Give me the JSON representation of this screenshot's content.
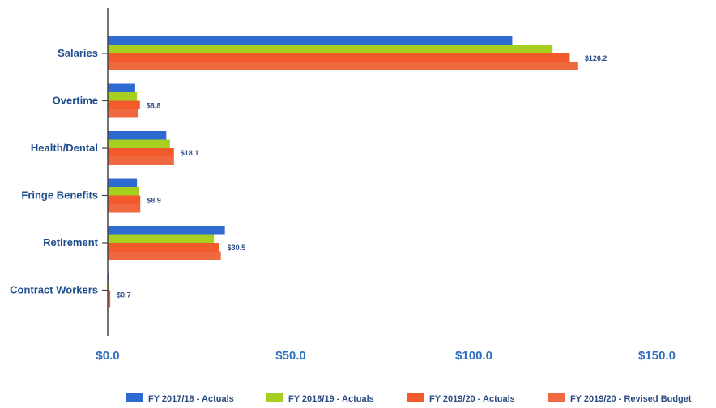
{
  "chart_data": {
    "type": "bar",
    "orientation": "horizontal",
    "categories": [
      "Salaries",
      "Overtime",
      "Health/Dental",
      "Fringe Benefits",
      "Retirement",
      "Contract Workers"
    ],
    "series": [
      {
        "name": "FY 2017/18 - Actuals",
        "color": "#2e6bd1",
        "values": [
          110.5,
          7.5,
          16.0,
          8.0,
          32.0,
          0.3
        ]
      },
      {
        "name": "FY 2018/19 - Actuals",
        "color": "#a6cf1f",
        "values": [
          121.5,
          8.0,
          17.0,
          8.5,
          29.0,
          0.2
        ]
      },
      {
        "name": "FY 2019/20 - Actuals",
        "color": "#f25a2c",
        "values": [
          126.2,
          8.8,
          18.1,
          8.9,
          30.5,
          0.7
        ]
      },
      {
        "name": "FY 2019/20 - Revised Budget",
        "color": "#f06840",
        "values": [
          128.5,
          8.2,
          18.1,
          8.9,
          30.9,
          0.7
        ]
      }
    ],
    "data_labels": [
      "$126.2",
      "$8.8",
      "$18.1",
      "$8.9",
      "$30.5",
      "$0.7"
    ],
    "x_ticks": [
      "$0.0",
      "$50.0",
      "$100.0",
      "$150.0"
    ],
    "x_tick_values": [
      0,
      50,
      100,
      150
    ],
    "xlim": [
      0,
      165
    ],
    "title": "",
    "xlabel": "",
    "ylabel": "",
    "grid": false,
    "legend_position": "bottom-right"
  }
}
